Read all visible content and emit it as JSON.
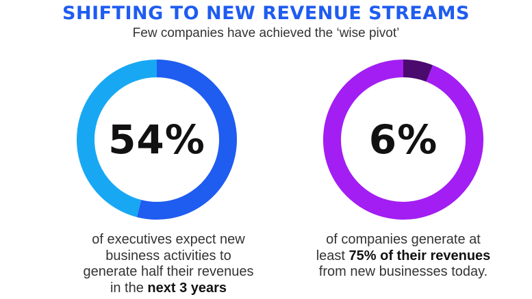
{
  "header": {
    "title": "SHIFTING TO NEW REVENUE STREAMS",
    "subtitle": "Few companies have achieved the ‘wise pivot’"
  },
  "chart_data": [
    {
      "type": "pie",
      "variant": "donut",
      "value_percent": 54,
      "label": "54%",
      "colors": {
        "filled": "#1f5cf0",
        "remainder": "#18a8f3"
      },
      "caption": {
        "line1": "of executives expect new",
        "line2": "business activities to",
        "line3": "generate half their revenues",
        "line4_prefix": "in the ",
        "line4_bold": "next 3 years"
      }
    },
    {
      "type": "pie",
      "variant": "donut",
      "value_percent": 6,
      "label": "6%",
      "colors": {
        "filled": "#4a0a6e",
        "remainder": "#a21ef2"
      },
      "caption": {
        "line1": "of companies generate at",
        "line2_prefix": "least ",
        "line2_bold": "75% of their revenues",
        "line3": "from new businesses today."
      }
    }
  ]
}
